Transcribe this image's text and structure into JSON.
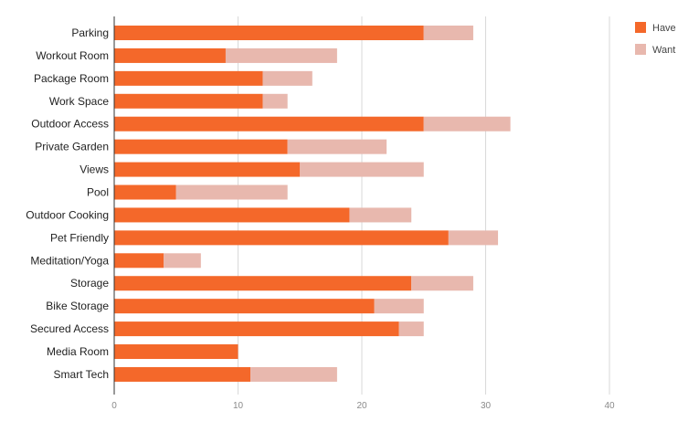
{
  "chart_data": {
    "type": "bar",
    "orientation": "horizontal",
    "stacked": true,
    "categories": [
      "Parking",
      "Workout Room",
      "Package Room",
      "Work Space",
      "Outdoor Access",
      "Private Garden",
      "Views",
      "Pool",
      "Outdoor Cooking",
      "Pet Friendly",
      "Meditation/Yoga",
      "Storage",
      "Bike Storage",
      "Secured Access",
      "Media Room",
      "Smart Tech"
    ],
    "series": [
      {
        "name": "Have",
        "color": "#f4682a",
        "values": [
          25,
          9,
          12,
          12,
          25,
          14,
          15,
          5,
          19,
          27,
          4,
          24,
          21,
          23,
          10,
          11
        ]
      },
      {
        "name": "Want",
        "color": "#e8b8ae",
        "values": [
          4,
          9,
          4,
          2,
          7,
          8,
          10,
          9,
          5,
          4,
          3,
          5,
          4,
          2,
          0,
          7
        ]
      }
    ],
    "xlim": [
      0,
      45
    ],
    "xticks": [
      "0",
      "10",
      "20",
      "30",
      "40"
    ],
    "grid": true,
    "legend": "top-right"
  }
}
